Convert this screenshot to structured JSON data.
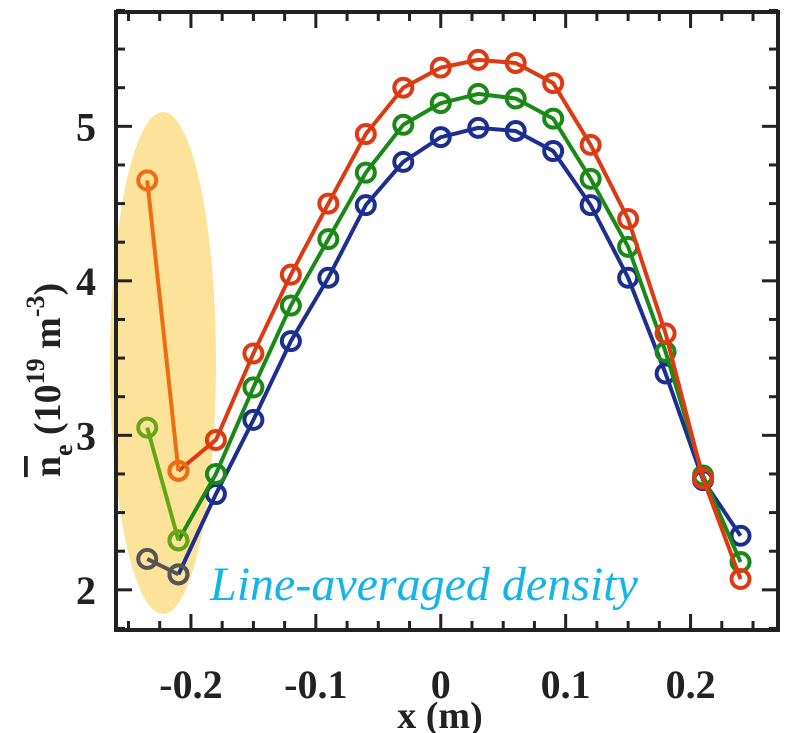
{
  "chart_data": {
    "type": "line",
    "title": "",
    "xlabel": "x (m)",
    "ylabel": {
      "base": "n",
      "subscript": "e",
      "units_pre": " (10",
      "units_exp": "19",
      "units_mid": " m",
      "units_exp2": "-3",
      "units_post": ")"
    },
    "xlim": [
      -0.26,
      0.27
    ],
    "ylim": [
      1.74,
      5.74
    ],
    "xticks": [
      -0.2,
      -0.1,
      0,
      0.1,
      0.2
    ],
    "xtick_labels": [
      "-0.2",
      "-0.1",
      "0",
      "0.1",
      "0.2"
    ],
    "yticks": [
      2,
      3,
      4,
      5
    ],
    "ytick_labels": [
      "2",
      "3",
      "4",
      "5"
    ],
    "grid": false,
    "annotation": {
      "text": "Line-averaged density",
      "color": "#13b4e8"
    },
    "highlight": {
      "color": "#fde29a",
      "shape": "ellipse",
      "region": "left edge, x ≈ -0.24 to -0.21"
    },
    "series": [
      {
        "color": "#1c2f91",
        "x": [
          -0.21,
          -0.18,
          -0.15,
          -0.12,
          -0.09,
          -0.06,
          -0.03,
          0.0,
          0.03,
          0.06,
          0.09,
          0.12,
          0.15,
          0.18,
          0.21,
          0.24
        ],
        "y": [
          2.1,
          2.62,
          3.1,
          3.61,
          4.02,
          4.49,
          4.77,
          4.93,
          4.99,
          4.97,
          4.84,
          4.49,
          4.02,
          3.4,
          2.71,
          2.35
        ]
      },
      {
        "color": "#1a8a16",
        "x": [
          -0.21,
          -0.18,
          -0.15,
          -0.12,
          -0.09,
          -0.06,
          -0.03,
          0.0,
          0.03,
          0.06,
          0.09,
          0.12,
          0.15,
          0.18,
          0.21,
          0.24
        ],
        "y": [
          2.32,
          2.75,
          3.31,
          3.84,
          4.27,
          4.7,
          5.01,
          5.15,
          5.21,
          5.18,
          5.05,
          4.66,
          4.22,
          3.54,
          2.74,
          2.18
        ]
      },
      {
        "color": "#dd3a12",
        "x": [
          -0.21,
          -0.18,
          -0.15,
          -0.12,
          -0.09,
          -0.06,
          -0.03,
          0.0,
          0.03,
          0.06,
          0.09,
          0.12,
          0.15,
          0.18,
          0.21,
          0.24
        ],
        "y": [
          2.77,
          2.97,
          3.53,
          4.04,
          4.5,
          4.95,
          5.25,
          5.38,
          5.43,
          5.41,
          5.28,
          4.88,
          4.4,
          3.66,
          2.72,
          2.07
        ]
      },
      {
        "color": "#555555",
        "x": [
          -0.235,
          -0.21
        ],
        "y": [
          2.2,
          2.1
        ]
      },
      {
        "color": "#66a513",
        "x": [
          -0.235,
          -0.21
        ],
        "y": [
          3.05,
          2.32
        ]
      },
      {
        "color": "#ee6d12",
        "x": [
          -0.235,
          -0.21
        ],
        "y": [
          4.65,
          2.77
        ]
      }
    ]
  }
}
